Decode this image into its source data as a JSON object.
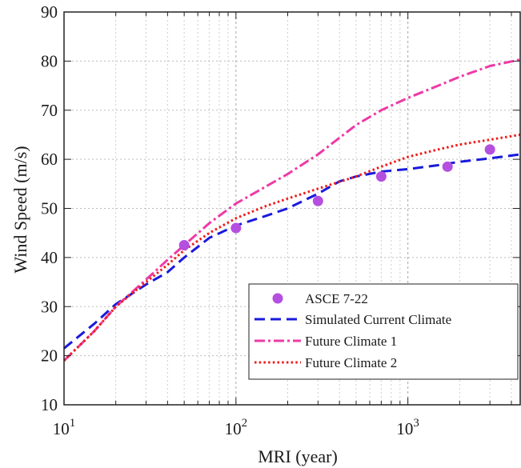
{
  "chart_data": {
    "type": "line",
    "xlabel": "MRI (year)",
    "ylabel": "Wind Speed (m/s)",
    "xscale": "log",
    "xlim": [
      10,
      4500
    ],
    "ylim": [
      10,
      90
    ],
    "yticks": [
      10,
      20,
      30,
      40,
      50,
      60,
      70,
      80,
      90
    ],
    "xticks": [
      {
        "value": 10,
        "base": "10",
        "exp": "1"
      },
      {
        "value": 100,
        "base": "10",
        "exp": "2"
      },
      {
        "value": 1000,
        "base": "10",
        "exp": "3"
      }
    ],
    "grid": true,
    "legend_position": "bottom-right",
    "series": [
      {
        "name": "ASCE 7-22",
        "style": "markers",
        "color": "#b44fe0",
        "x": [
          50,
          100,
          300,
          700,
          1700,
          3000
        ],
        "y": [
          42.5,
          46,
          51.5,
          56.5,
          58.5,
          62
        ]
      },
      {
        "name": "Simulated Current Climate",
        "style": "dashed",
        "color": "#1a1adc",
        "x": [
          10,
          15,
          20,
          30,
          40,
          50,
          70,
          100,
          150,
          200,
          300,
          400,
          500,
          700,
          1000,
          1500,
          2000,
          3000,
          4500
        ],
        "y": [
          21.5,
          26.5,
          30.5,
          34.5,
          37,
          40,
          44,
          46.5,
          48.5,
          50,
          53,
          55.5,
          56.5,
          57.5,
          58,
          58.8,
          59.5,
          60.2,
          61
        ]
      },
      {
        "name": "Future Climate 1",
        "style": "dashdot",
        "color": "#ee3aa6",
        "x": [
          10,
          15,
          20,
          30,
          40,
          50,
          70,
          100,
          150,
          200,
          300,
          500,
          700,
          1000,
          1500,
          2000,
          3000,
          4500
        ],
        "y": [
          19,
          25,
          30,
          35.5,
          39.5,
          42.5,
          47,
          51,
          54.5,
          57,
          61,
          67,
          70,
          72.5,
          75,
          76.8,
          79,
          80.3
        ]
      },
      {
        "name": "Future Climate 2",
        "style": "dotted",
        "color": "#ee1c1c",
        "x": [
          10,
          15,
          20,
          30,
          40,
          50,
          70,
          100,
          150,
          200,
          300,
          500,
          700,
          1000,
          1500,
          2000,
          3000,
          4500
        ],
        "y": [
          19,
          25,
          30,
          35,
          38.5,
          41.5,
          45,
          48,
          50.5,
          52,
          54,
          56.5,
          58.5,
          60.5,
          62,
          63,
          64,
          65
        ]
      }
    ]
  }
}
